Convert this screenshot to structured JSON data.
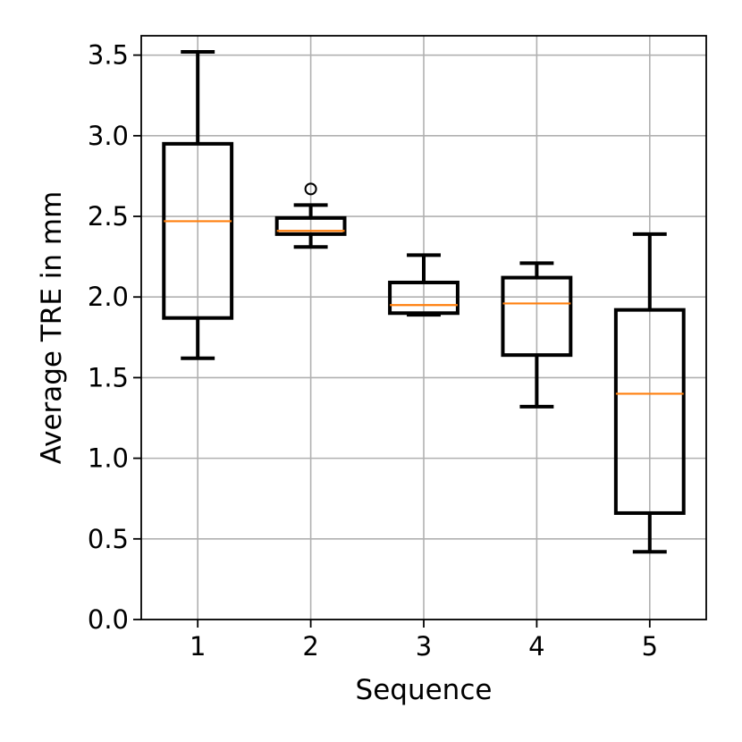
{
  "chart_data": {
    "type": "boxplot",
    "title": "",
    "xlabel": "Sequence",
    "ylabel": "Average TRE in mm",
    "categories": [
      "1",
      "2",
      "3",
      "4",
      "5"
    ],
    "ylim": [
      0.0,
      3.62
    ],
    "yticks": [
      0.0,
      0.5,
      1.0,
      1.5,
      2.0,
      2.5,
      3.0,
      3.5
    ],
    "ytick_labels": [
      "0.0",
      "0.5",
      "1.0",
      "1.5",
      "2.0",
      "2.5",
      "3.0",
      "3.5"
    ],
    "grid": true,
    "boxes": [
      {
        "category": "1",
        "whisker_low": 1.62,
        "q1": 1.87,
        "median": 2.47,
        "q3": 2.95,
        "whisker_high": 3.52,
        "outliers": []
      },
      {
        "category": "2",
        "whisker_low": 2.31,
        "q1": 2.39,
        "median": 2.41,
        "q3": 2.49,
        "whisker_high": 2.57,
        "outliers": [
          2.67
        ]
      },
      {
        "category": "3",
        "whisker_low": 1.89,
        "q1": 1.9,
        "median": 1.95,
        "q3": 2.09,
        "whisker_high": 2.26,
        "outliers": []
      },
      {
        "category": "4",
        "whisker_low": 1.32,
        "q1": 1.64,
        "median": 1.96,
        "q3": 2.12,
        "whisker_high": 2.21,
        "outliers": []
      },
      {
        "category": "5",
        "whisker_low": 0.42,
        "q1": 0.66,
        "median": 1.4,
        "q3": 1.92,
        "whisker_high": 2.39,
        "outliers": []
      }
    ],
    "colors": {
      "box": "#000000",
      "median": "#ff7f0e",
      "grid": "#b0b0b0"
    }
  }
}
